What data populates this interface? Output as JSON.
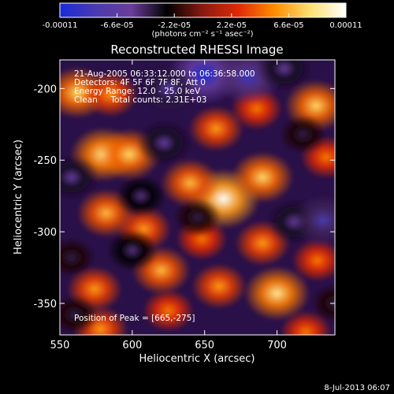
{
  "chart_data": {
    "type": "heatmap",
    "title": "Reconstructed RHESSI Image",
    "xlabel": "Heliocentric X (arcsec)",
    "ylabel": "Heliocentric Y (arcsec)",
    "xlim": [
      550,
      740
    ],
    "ylim": [
      -372,
      -180
    ],
    "xticks": [
      "550",
      "600",
      "650",
      "700"
    ],
    "xtick_values": [
      550,
      600,
      650,
      700
    ],
    "yticks": [
      "-200",
      "-250",
      "-300",
      "-350"
    ],
    "ytick_values": [
      -200,
      -250,
      -300,
      -350
    ],
    "colorbar": {
      "min": -0.00011,
      "max": 0.00011,
      "tick_labels": [
        "-0.00011",
        "-6.6e-05",
        "-2.2e-05",
        "2.2e-05",
        "6.6e-05",
        "0.00011"
      ],
      "tick_values": [
        -0.00011,
        -6.6e-05,
        -2.2e-05,
        2.2e-05,
        6.6e-05,
        0.00011
      ],
      "units": "(photons cm⁻² s⁻¹ asec⁻²)",
      "colors": [
        "#1a2bd8",
        "#4a3ab0",
        "#6a3d9a",
        "#000000",
        "#8a1a12",
        "#e02a08",
        "#ff8c00",
        "#ffe070",
        "#ffffff"
      ]
    },
    "annotations": [
      "21-Aug-2005 06:33:12.000 to 06:36:58.000",
      "Detectors: 4F 5F 6F 7F 8F, Att 0",
      "Energy Range: 12.0 - 25.0 keV",
      "Clean     Total counts: 2.31E+03"
    ],
    "peak_label": "Position of Peak = [665,-275]",
    "peak": [
      665,
      -275
    ],
    "sources": [
      {
        "x": 663,
        "y": -277,
        "value": 0.00011
      },
      {
        "x": 640,
        "y": -266,
        "value": 7e-05
      },
      {
        "x": 690,
        "y": -262,
        "value": 8e-05
      },
      {
        "x": 580,
        "y": -246,
        "value": 9e-05
      },
      {
        "x": 598,
        "y": -246,
        "value": 8e-05
      },
      {
        "x": 562,
        "y": -203,
        "value": 8e-05
      },
      {
        "x": 585,
        "y": -204,
        "value": 6e-05
      },
      {
        "x": 658,
        "y": -228,
        "value": 6e-05
      },
      {
        "x": 686,
        "y": -214,
        "value": 5e-05
      },
      {
        "x": 727,
        "y": -212,
        "value": 8e-05
      },
      {
        "x": 734,
        "y": -248,
        "value": 5e-05
      },
      {
        "x": 582,
        "y": -287,
        "value": 7e-05
      },
      {
        "x": 608,
        "y": -298,
        "value": 6e-05
      },
      {
        "x": 620,
        "y": -327,
        "value": 7e-05
      },
      {
        "x": 660,
        "y": -338,
        "value": 6e-05
      },
      {
        "x": 700,
        "y": -343,
        "value": 9e-05
      },
      {
        "x": 690,
        "y": -308,
        "value": 6e-05
      },
      {
        "x": 728,
        "y": -320,
        "value": 5e-05
      },
      {
        "x": 574,
        "y": -340,
        "value": 6e-05
      },
      {
        "x": 578,
        "y": -368,
        "value": 6e-05
      },
      {
        "x": 625,
        "y": -355,
        "value": 5e-05
      },
      {
        "x": 720,
        "y": -370,
        "value": 5e-05
      },
      {
        "x": 648,
        "y": -305,
        "value": 5e-05
      },
      {
        "x": 650,
        "y": -190,
        "value": -0.00011
      },
      {
        "x": 625,
        "y": -200,
        "value": -7e-05
      },
      {
        "x": 680,
        "y": -192,
        "value": -9e-05
      },
      {
        "x": 705,
        "y": -186,
        "value": -6e-05
      },
      {
        "x": 718,
        "y": -232,
        "value": -4e-05
      },
      {
        "x": 622,
        "y": -238,
        "value": -6e-05
      },
      {
        "x": 558,
        "y": -262,
        "value": -6e-05
      },
      {
        "x": 558,
        "y": -318,
        "value": -4e-05
      },
      {
        "x": 606,
        "y": -275,
        "value": -5e-05
      },
      {
        "x": 712,
        "y": -293,
        "value": -6e-05
      },
      {
        "x": 732,
        "y": -292,
        "value": -8e-05
      },
      {
        "x": 645,
        "y": -290,
        "value": -4e-05
      },
      {
        "x": 600,
        "y": -313,
        "value": -5e-05
      },
      {
        "x": 560,
        "y": -358,
        "value": -4e-05
      },
      {
        "x": 740,
        "y": -350,
        "value": -4e-05
      }
    ]
  },
  "footer": {
    "timestamp": "8-Jul-2013 06:07"
  }
}
